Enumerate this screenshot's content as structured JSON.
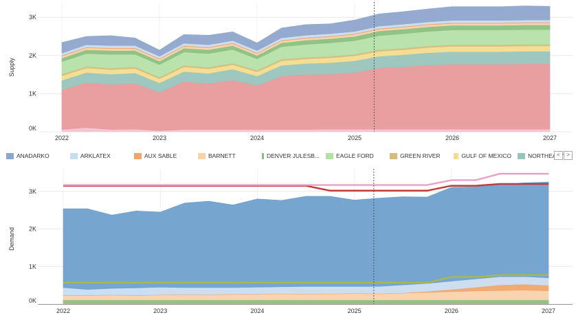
{
  "charts": {
    "supply": {
      "ylabel": "Supply",
      "yticks": [
        "3K",
        "2K",
        "1K",
        "0K"
      ],
      "xticks": [
        "2022",
        "2023",
        "2024",
        "2025",
        "2026",
        "2027"
      ]
    },
    "demand": {
      "ylabel": "Demand",
      "yticks": [
        "3K",
        "2K",
        "1K",
        "0K"
      ],
      "xticks": [
        "2022",
        "2023",
        "2024",
        "2025",
        "2026",
        "2027"
      ]
    }
  },
  "legend": {
    "items": [
      {
        "label": "ANADARKO",
        "color": "#8ea6cc"
      },
      {
        "label": "ARKLATEX",
        "color": "#c9dcef"
      },
      {
        "label": "AUX SABLE",
        "color": "#f0a66a"
      },
      {
        "label": "BARNETT",
        "color": "#f8d2ac"
      },
      {
        "label": "DENVER JULESB...",
        "color": "#8bbf80"
      },
      {
        "label": "EAGLE FORD",
        "color": "#b5e0a8"
      },
      {
        "label": "GREEN RIVER",
        "color": "#d2bd7e"
      },
      {
        "label": "GULF OF MEXICO",
        "color": "#f3dc8e"
      },
      {
        "label": "NORTHEAST",
        "color": "#98c4bc"
      }
    ],
    "prev_icon": "chevron-left-icon",
    "next_icon": "chevron-right-icon",
    "prev_label": "<",
    "next_label": ">"
  },
  "chart_data": [
    {
      "type": "area",
      "stacked": true,
      "ylabel": "Supply",
      "x": [
        2022.0,
        2022.25,
        2022.5,
        2022.75,
        2023.0,
        2023.25,
        2023.5,
        2023.75,
        2024.0,
        2024.25,
        2024.5,
        2024.75,
        2025.0,
        2025.25,
        2025.5,
        2025.75,
        2026.0,
        2026.25,
        2026.5,
        2026.75,
        2027.0
      ],
      "ylim": [
        0,
        3400
      ],
      "yticks": [
        0,
        1000,
        2000,
        3000
      ],
      "current_date_marker": 2025.2,
      "series": [
        {
          "name": "",
          "color": "#f3c3cf",
          "values": [
            60,
            110,
            60,
            70,
            30,
            60,
            60,
            60,
            60,
            60,
            60,
            70,
            70,
            70,
            70,
            70,
            70,
            70,
            70,
            70,
            70
          ]
        },
        {
          "name": "",
          "color": "#e89a9a",
          "values": [
            1040,
            1180,
            1180,
            1200,
            1000,
            1260,
            1200,
            1300,
            1150,
            1400,
            1440,
            1440,
            1480,
            1600,
            1630,
            1680,
            1700,
            1700,
            1700,
            1710,
            1710
          ]
        },
        {
          "name": "NORTHEAST",
          "color": "#98c4bc",
          "values": [
            250,
            260,
            270,
            270,
            250,
            260,
            270,
            280,
            250,
            280,
            290,
            300,
            310,
            310,
            320,
            320,
            330,
            330,
            330,
            330,
            330
          ]
        },
        {
          "name": "GULF OF MEXICO",
          "color": "#f3dc8e",
          "values": [
            120,
            120,
            120,
            120,
            110,
            120,
            120,
            120,
            110,
            120,
            120,
            130,
            130,
            130,
            130,
            140,
            140,
            140,
            140,
            140,
            140
          ]
        },
        {
          "name": "GREEN RIVER",
          "color": "#d2bd7e",
          "values": [
            40,
            40,
            40,
            40,
            40,
            40,
            40,
            40,
            40,
            40,
            40,
            40,
            40,
            40,
            40,
            40,
            40,
            40,
            40,
            40,
            40
          ]
        },
        {
          "name": "EAGLE FORD",
          "color": "#b5e0a8",
          "values": [
            330,
            340,
            360,
            330,
            330,
            350,
            360,
            360,
            300,
            330,
            340,
            350,
            360,
            370,
            380,
            380,
            390,
            390,
            390,
            390,
            390
          ]
        },
        {
          "name": "DENVER JULESB...",
          "color": "#8bbf80",
          "values": [
            90,
            100,
            100,
            100,
            90,
            100,
            100,
            100,
            90,
            100,
            110,
            110,
            110,
            120,
            120,
            120,
            120,
            120,
            120,
            120,
            120
          ]
        },
        {
          "name": "BARNETT",
          "color": "#f8d2ac",
          "values": [
            50,
            50,
            50,
            50,
            50,
            50,
            50,
            50,
            50,
            50,
            50,
            50,
            50,
            50,
            50,
            50,
            50,
            50,
            50,
            50,
            50
          ]
        },
        {
          "name": "AUX SABLE",
          "color": "#f0a66a",
          "values": [
            20,
            20,
            20,
            20,
            20,
            20,
            20,
            20,
            20,
            20,
            20,
            20,
            20,
            20,
            20,
            20,
            20,
            20,
            20,
            20,
            20
          ]
        },
        {
          "name": "ARKLATEX",
          "color": "#c9dcef",
          "values": [
            60,
            60,
            60,
            60,
            60,
            60,
            60,
            60,
            60,
            60,
            60,
            60,
            60,
            60,
            60,
            60,
            60,
            60,
            60,
            60,
            60
          ]
        },
        {
          "name": "ANADARKO",
          "color": "#8ea6cc",
          "values": [
            280,
            220,
            260,
            200,
            160,
            230,
            250,
            230,
            200,
            260,
            280,
            260,
            300,
            320,
            330,
            340,
            360,
            360,
            360,
            370,
            360
          ]
        }
      ]
    },
    {
      "type": "area",
      "stacked": true,
      "ylabel": "Demand",
      "x": [
        2022.0,
        2022.25,
        2022.5,
        2022.75,
        2023.0,
        2023.25,
        2023.5,
        2023.75,
        2024.0,
        2024.25,
        2024.5,
        2024.75,
        2025.0,
        2025.25,
        2025.5,
        2025.75,
        2026.0,
        2026.25,
        2026.5,
        2026.75,
        2027.0
      ],
      "ylim": [
        0,
        3600
      ],
      "yticks": [
        0,
        1000,
        2000,
        3000
      ],
      "current_date_marker": 2025.2,
      "series": [
        {
          "name": "",
          "color": "#e89a9a",
          "values": [
            30,
            30,
            30,
            30,
            30,
            30,
            30,
            30,
            30,
            30,
            30,
            30,
            30,
            30,
            30,
            30,
            30,
            30,
            30,
            30,
            30
          ]
        },
        {
          "name": "",
          "color": "#8bbf80",
          "values": [
            80,
            80,
            80,
            80,
            80,
            80,
            80,
            80,
            80,
            80,
            80,
            80,
            80,
            80,
            80,
            80,
            80,
            80,
            80,
            80,
            80
          ]
        },
        {
          "name": "",
          "color": "#f8d2ac",
          "values": [
            120,
            120,
            130,
            120,
            130,
            140,
            130,
            150,
            150,
            160,
            150,
            160,
            170,
            160,
            180,
            200,
            220,
            240,
            250,
            260,
            240
          ]
        },
        {
          "name": "",
          "color": "#f0a66a",
          "values": [
            10,
            10,
            10,
            10,
            10,
            10,
            10,
            10,
            10,
            10,
            10,
            10,
            10,
            10,
            10,
            30,
            60,
            100,
            150,
            160,
            150
          ]
        },
        {
          "name": "",
          "color": "#c9dcef",
          "values": [
            200,
            150,
            170,
            190,
            200,
            180,
            190,
            170,
            180,
            180,
            200,
            190,
            180,
            190,
            210,
            210,
            220,
            220,
            220,
            200,
            200
          ]
        },
        {
          "name": "",
          "color": "#6fa0cc",
          "values": [
            2100,
            2150,
            1950,
            2050,
            2000,
            2250,
            2300,
            2200,
            2350,
            2300,
            2400,
            2400,
            2300,
            2350,
            2350,
            2300,
            2500,
            2450,
            2450,
            2500,
            2550
          ]
        }
      ],
      "lines": [
        {
          "name": "",
          "color": "#c0393b",
          "values": [
            3150,
            3150,
            3150,
            3150,
            3150,
            3150,
            3150,
            3150,
            3150,
            3150,
            3150,
            3020,
            3020,
            3020,
            3020,
            3020,
            3150,
            3150,
            3200,
            3200,
            3200
          ]
        },
        {
          "name": "",
          "color": "#eaa0c5",
          "values": [
            3170,
            3170,
            3170,
            3170,
            3170,
            3170,
            3170,
            3170,
            3170,
            3170,
            3170,
            3170,
            3170,
            3170,
            3170,
            3170,
            3300,
            3300,
            3470,
            3470,
            3470
          ]
        },
        {
          "name": "",
          "color": "#a9b84a",
          "values": [
            570,
            570,
            570,
            570,
            570,
            570,
            570,
            570,
            570,
            570,
            570,
            570,
            570,
            570,
            570,
            570,
            720,
            720,
            770,
            770,
            770
          ]
        }
      ]
    }
  ]
}
